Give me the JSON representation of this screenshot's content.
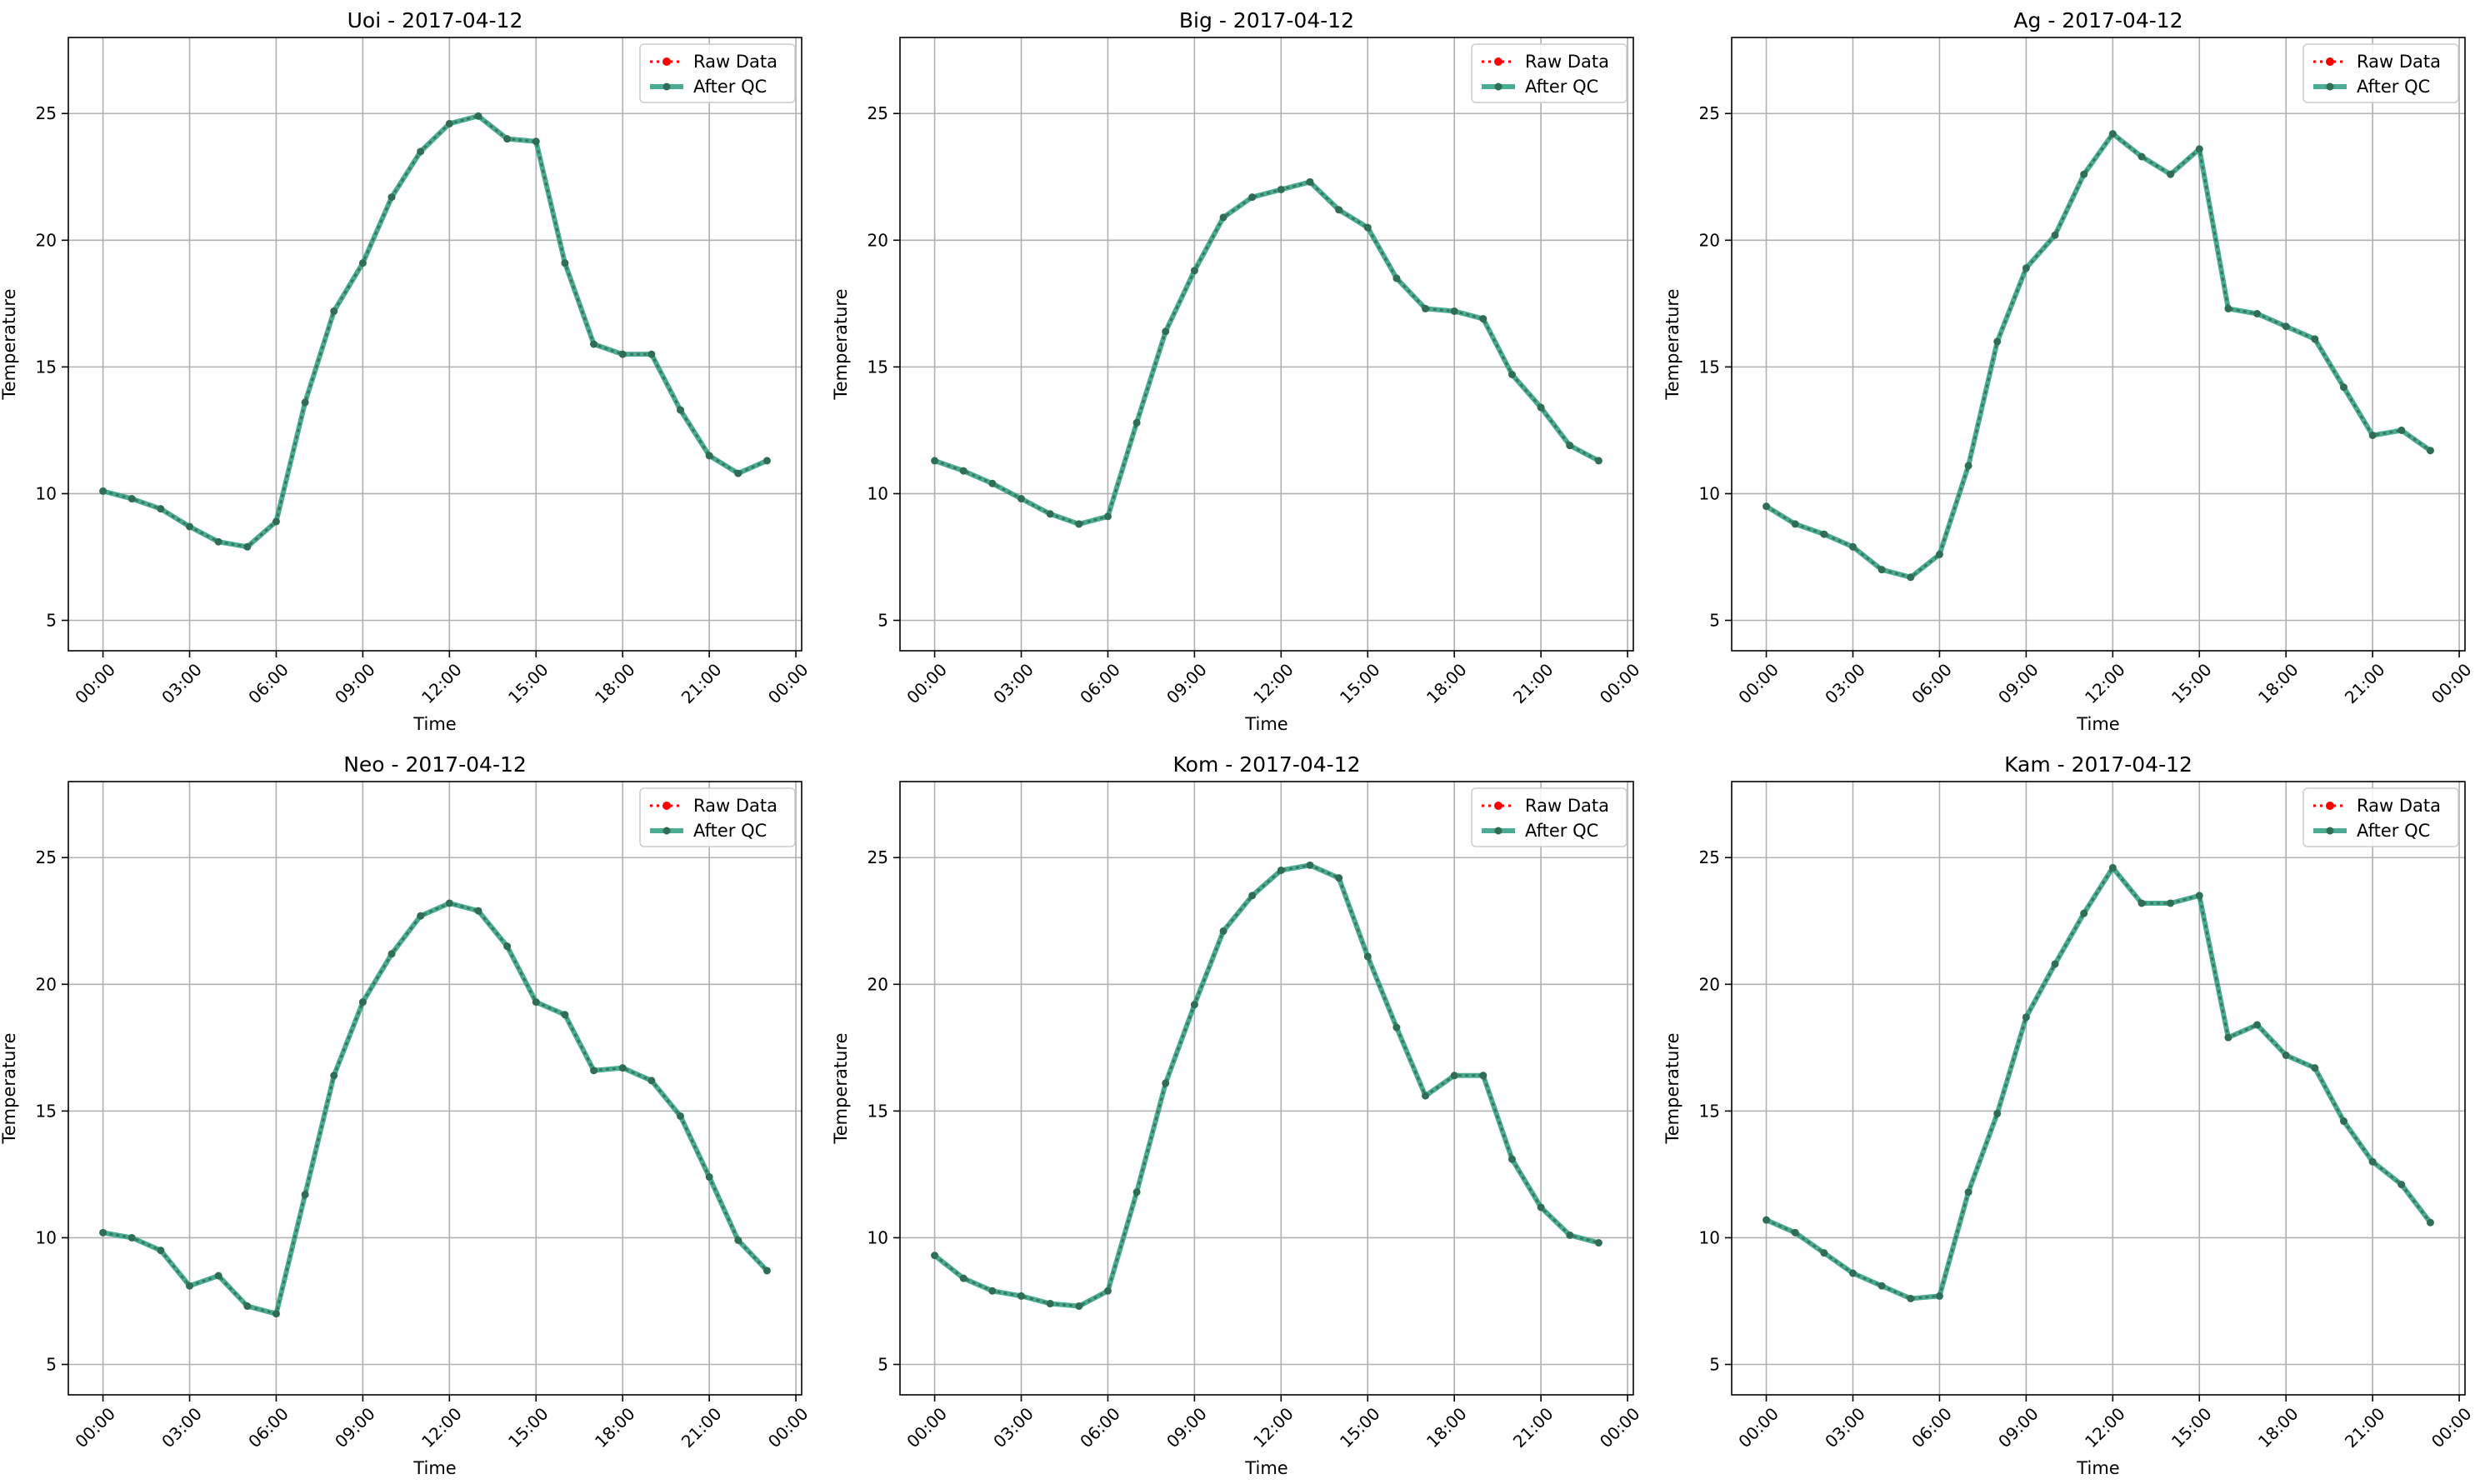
{
  "colors": {
    "raw": "#ff0000",
    "qc": "#2a9d7f",
    "qc_marker": "#2f6e55",
    "grid": "#b0b0b0",
    "legend_border": "#cccccc"
  },
  "chart_data": [
    {
      "type": "line",
      "title": "Uoi - 2017-04-12",
      "xlabel": "Time",
      "ylabel": "Temperature",
      "x": [
        "00:00",
        "01:00",
        "02:00",
        "03:00",
        "04:00",
        "05:00",
        "06:00",
        "07:00",
        "08:00",
        "09:00",
        "10:00",
        "11:00",
        "12:00",
        "13:00",
        "14:00",
        "15:00",
        "16:00",
        "17:00",
        "18:00",
        "19:00",
        "20:00",
        "21:00",
        "22:00",
        "23:00"
      ],
      "x_ticks": [
        "00:00",
        "03:00",
        "06:00",
        "09:00",
        "12:00",
        "15:00",
        "18:00",
        "21:00",
        "00:00"
      ],
      "xlim": [
        -1.2,
        24.2
      ],
      "ylim": [
        3.8,
        28
      ],
      "y_ticks": [
        5,
        10,
        15,
        20,
        25
      ],
      "grid": true,
      "legend_position": "top-right",
      "series": [
        {
          "name": "Raw Data",
          "values": [
            10.1,
            9.8,
            9.4,
            8.7,
            8.1,
            7.9,
            8.9,
            13.6,
            17.2,
            19.1,
            21.7,
            23.5,
            24.6,
            24.9,
            24.0,
            23.9,
            19.1,
            15.9,
            15.5,
            15.5,
            13.3,
            11.5,
            10.8,
            11.3
          ]
        },
        {
          "name": "After QC",
          "values": [
            10.1,
            9.8,
            9.4,
            8.7,
            8.1,
            7.9,
            8.9,
            13.6,
            17.2,
            19.1,
            21.7,
            23.5,
            24.6,
            24.9,
            24.0,
            23.9,
            19.1,
            15.9,
            15.5,
            15.5,
            13.3,
            11.5,
            10.8,
            11.3
          ]
        }
      ]
    },
    {
      "type": "line",
      "title": "Big - 2017-04-12",
      "xlabel": "Time",
      "ylabel": "Temperature",
      "x": [
        "00:00",
        "01:00",
        "02:00",
        "03:00",
        "04:00",
        "05:00",
        "06:00",
        "07:00",
        "08:00",
        "09:00",
        "10:00",
        "11:00",
        "12:00",
        "13:00",
        "14:00",
        "15:00",
        "16:00",
        "17:00",
        "18:00",
        "19:00",
        "20:00",
        "21:00",
        "22:00",
        "23:00"
      ],
      "x_ticks": [
        "00:00",
        "03:00",
        "06:00",
        "09:00",
        "12:00",
        "15:00",
        "18:00",
        "21:00",
        "00:00"
      ],
      "xlim": [
        -1.2,
        24.2
      ],
      "ylim": [
        3.8,
        28
      ],
      "y_ticks": [
        5,
        10,
        15,
        20,
        25
      ],
      "grid": true,
      "legend_position": "top-right",
      "series": [
        {
          "name": "Raw Data",
          "values": [
            11.3,
            10.9,
            10.4,
            9.8,
            9.2,
            8.8,
            9.1,
            12.8,
            16.4,
            18.8,
            20.9,
            21.7,
            22.0,
            22.3,
            21.2,
            20.5,
            18.5,
            17.3,
            17.2,
            16.9,
            14.7,
            13.4,
            11.9,
            11.3
          ]
        },
        {
          "name": "After QC",
          "values": [
            11.3,
            10.9,
            10.4,
            9.8,
            9.2,
            8.8,
            9.1,
            12.8,
            16.4,
            18.8,
            20.9,
            21.7,
            22.0,
            22.3,
            21.2,
            20.5,
            18.5,
            17.3,
            17.2,
            16.9,
            14.7,
            13.4,
            11.9,
            11.3
          ]
        }
      ]
    },
    {
      "type": "line",
      "title": "Ag - 2017-04-12",
      "xlabel": "Time",
      "ylabel": "Temperature",
      "x": [
        "00:00",
        "01:00",
        "02:00",
        "03:00",
        "04:00",
        "05:00",
        "06:00",
        "07:00",
        "08:00",
        "09:00",
        "10:00",
        "11:00",
        "12:00",
        "13:00",
        "14:00",
        "15:00",
        "16:00",
        "17:00",
        "18:00",
        "19:00",
        "20:00",
        "21:00",
        "22:00",
        "23:00"
      ],
      "x_ticks": [
        "00:00",
        "03:00",
        "06:00",
        "09:00",
        "12:00",
        "15:00",
        "18:00",
        "21:00",
        "00:00"
      ],
      "xlim": [
        -1.2,
        24.2
      ],
      "ylim": [
        3.8,
        28
      ],
      "y_ticks": [
        5,
        10,
        15,
        20,
        25
      ],
      "grid": true,
      "legend_position": "top-right",
      "series": [
        {
          "name": "Raw Data",
          "values": [
            9.5,
            8.8,
            8.4,
            7.9,
            7.0,
            6.7,
            7.6,
            11.1,
            16.0,
            18.9,
            20.2,
            22.6,
            24.2,
            23.3,
            22.6,
            23.6,
            17.3,
            17.1,
            16.6,
            16.1,
            14.2,
            12.3,
            12.5,
            11.7
          ]
        },
        {
          "name": "After QC",
          "values": [
            9.5,
            8.8,
            8.4,
            7.9,
            7.0,
            6.7,
            7.6,
            11.1,
            16.0,
            18.9,
            20.2,
            22.6,
            24.2,
            23.3,
            22.6,
            23.6,
            17.3,
            17.1,
            16.6,
            16.1,
            14.2,
            12.3,
            12.5,
            11.7
          ]
        }
      ]
    },
    {
      "type": "line",
      "title": "Neo - 2017-04-12",
      "xlabel": "Time",
      "ylabel": "Temperature",
      "x": [
        "00:00",
        "01:00",
        "02:00",
        "03:00",
        "04:00",
        "05:00",
        "06:00",
        "07:00",
        "08:00",
        "09:00",
        "10:00",
        "11:00",
        "12:00",
        "13:00",
        "14:00",
        "15:00",
        "16:00",
        "17:00",
        "18:00",
        "19:00",
        "20:00",
        "21:00",
        "22:00",
        "23:00"
      ],
      "x_ticks": [
        "00:00",
        "03:00",
        "06:00",
        "09:00",
        "12:00",
        "15:00",
        "18:00",
        "21:00",
        "00:00"
      ],
      "xlim": [
        -1.2,
        24.2
      ],
      "ylim": [
        3.8,
        28
      ],
      "y_ticks": [
        5,
        10,
        15,
        20,
        25
      ],
      "grid": true,
      "legend_position": "top-right",
      "series": [
        {
          "name": "Raw Data",
          "values": [
            10.2,
            10.0,
            9.5,
            8.1,
            8.5,
            7.3,
            7.0,
            11.7,
            16.4,
            19.3,
            21.2,
            22.7,
            23.2,
            22.9,
            21.5,
            19.3,
            18.8,
            16.6,
            16.7,
            16.2,
            14.8,
            12.4,
            9.9,
            8.7
          ]
        },
        {
          "name": "After QC",
          "values": [
            10.2,
            10.0,
            9.5,
            8.1,
            8.5,
            7.3,
            7.0,
            11.7,
            16.4,
            19.3,
            21.2,
            22.7,
            23.2,
            22.9,
            21.5,
            19.3,
            18.8,
            16.6,
            16.7,
            16.2,
            14.8,
            12.4,
            9.9,
            8.7
          ]
        }
      ]
    },
    {
      "type": "line",
      "title": "Kom - 2017-04-12",
      "xlabel": "Time",
      "ylabel": "Temperature",
      "x": [
        "00:00",
        "01:00",
        "02:00",
        "03:00",
        "04:00",
        "05:00",
        "06:00",
        "07:00",
        "08:00",
        "09:00",
        "10:00",
        "11:00",
        "12:00",
        "13:00",
        "14:00",
        "15:00",
        "16:00",
        "17:00",
        "18:00",
        "19:00",
        "20:00",
        "21:00",
        "22:00",
        "23:00"
      ],
      "x_ticks": [
        "00:00",
        "03:00",
        "06:00",
        "09:00",
        "12:00",
        "15:00",
        "18:00",
        "21:00",
        "00:00"
      ],
      "xlim": [
        -1.2,
        24.2
      ],
      "ylim": [
        3.8,
        28
      ],
      "y_ticks": [
        5,
        10,
        15,
        20,
        25
      ],
      "grid": true,
      "legend_position": "top-right",
      "series": [
        {
          "name": "Raw Data",
          "values": [
            9.3,
            8.4,
            7.9,
            7.7,
            7.4,
            7.3,
            7.9,
            11.8,
            16.1,
            19.2,
            22.1,
            23.5,
            24.5,
            24.7,
            24.2,
            21.1,
            18.3,
            15.6,
            16.4,
            16.4,
            13.1,
            11.2,
            10.1,
            9.8
          ]
        },
        {
          "name": "After QC",
          "values": [
            9.3,
            8.4,
            7.9,
            7.7,
            7.4,
            7.3,
            7.9,
            11.8,
            16.1,
            19.2,
            22.1,
            23.5,
            24.5,
            24.7,
            24.2,
            21.1,
            18.3,
            15.6,
            16.4,
            16.4,
            13.1,
            11.2,
            10.1,
            9.8
          ]
        }
      ]
    },
    {
      "type": "line",
      "title": "Kam - 2017-04-12",
      "xlabel": "Time",
      "ylabel": "Temperature",
      "x": [
        "00:00",
        "01:00",
        "02:00",
        "03:00",
        "04:00",
        "05:00",
        "06:00",
        "07:00",
        "08:00",
        "09:00",
        "10:00",
        "11:00",
        "12:00",
        "13:00",
        "14:00",
        "15:00",
        "16:00",
        "17:00",
        "18:00",
        "19:00",
        "20:00",
        "21:00",
        "22:00",
        "23:00"
      ],
      "x_ticks": [
        "00:00",
        "03:00",
        "06:00",
        "09:00",
        "12:00",
        "15:00",
        "18:00",
        "21:00",
        "00:00"
      ],
      "xlim": [
        -1.2,
        24.2
      ],
      "ylim": [
        3.8,
        28
      ],
      "y_ticks": [
        5,
        10,
        15,
        20,
        25
      ],
      "grid": true,
      "legend_position": "top-right",
      "series": [
        {
          "name": "Raw Data",
          "values": [
            10.7,
            10.2,
            9.4,
            8.6,
            8.1,
            7.6,
            7.7,
            11.8,
            14.9,
            18.7,
            20.8,
            22.8,
            24.6,
            23.2,
            23.2,
            23.5,
            17.9,
            18.4,
            17.2,
            16.7,
            14.6,
            13.0,
            12.1,
            10.6
          ]
        },
        {
          "name": "After QC",
          "values": [
            10.7,
            10.2,
            9.4,
            8.6,
            8.1,
            7.6,
            7.7,
            11.8,
            14.9,
            18.7,
            20.8,
            22.8,
            24.6,
            23.2,
            23.2,
            23.5,
            17.9,
            18.4,
            17.2,
            16.7,
            14.6,
            13.0,
            12.1,
            10.6
          ]
        }
      ]
    }
  ]
}
